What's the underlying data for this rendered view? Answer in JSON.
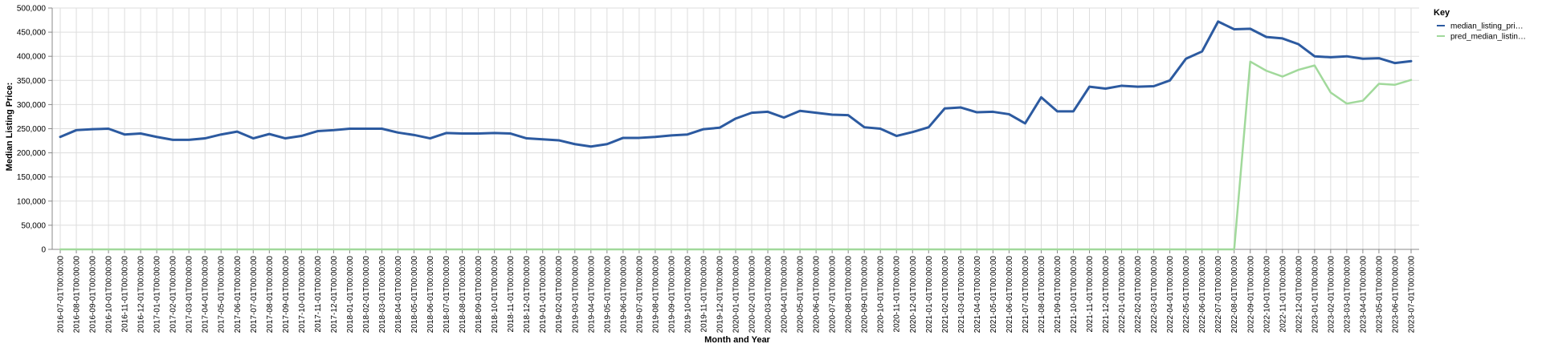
{
  "chart_data": {
    "type": "line",
    "title": "",
    "xlabel": "Month and Year",
    "ylabel": "Median Listing Price:",
    "ylim": [
      0,
      500000
    ],
    "y_ticks": [
      0,
      50000,
      100000,
      150000,
      200000,
      250000,
      300000,
      350000,
      400000,
      450000,
      500000
    ],
    "y_tick_labels": [
      "0",
      "50,000",
      "100,000",
      "150,000",
      "200,000",
      "250,000",
      "300,000",
      "350,000",
      "400,000",
      "450,000",
      "500,000"
    ],
    "grid": true,
    "legend": {
      "title": "Key",
      "position": "right"
    },
    "x": [
      "2016-07-01T00:00:00",
      "2016-08-01T00:00:00",
      "2016-09-01T00:00:00",
      "2016-10-01T00:00:00",
      "2016-11-01T00:00:00",
      "2016-12-01T00:00:00",
      "2017-01-01T00:00:00",
      "2017-02-01T00:00:00",
      "2017-03-01T00:00:00",
      "2017-04-01T00:00:00",
      "2017-05-01T00:00:00",
      "2017-06-01T00:00:00",
      "2017-07-01T00:00:00",
      "2017-08-01T00:00:00",
      "2017-09-01T00:00:00",
      "2017-10-01T00:00:00",
      "2017-11-01T00:00:00",
      "2017-12-01T00:00:00",
      "2018-01-01T00:00:00",
      "2018-02-01T00:00:00",
      "2018-03-01T00:00:00",
      "2018-04-01T00:00:00",
      "2018-05-01T00:00:00",
      "2018-06-01T00:00:00",
      "2018-07-01T00:00:00",
      "2018-08-01T00:00:00",
      "2018-09-01T00:00:00",
      "2018-10-01T00:00:00",
      "2018-11-01T00:00:00",
      "2018-12-01T00:00:00",
      "2019-01-01T00:00:00",
      "2019-02-01T00:00:00",
      "2019-03-01T00:00:00",
      "2019-04-01T00:00:00",
      "2019-05-01T00:00:00",
      "2019-06-01T00:00:00",
      "2019-07-01T00:00:00",
      "2019-08-01T00:00:00",
      "2019-09-01T00:00:00",
      "2019-10-01T00:00:00",
      "2019-11-01T00:00:00",
      "2019-12-01T00:00:00",
      "2020-01-01T00:00:00",
      "2020-02-01T00:00:00",
      "2020-03-01T00:00:00",
      "2020-04-01T00:00:00",
      "2020-05-01T00:00:00",
      "2020-06-01T00:00:00",
      "2020-07-01T00:00:00",
      "2020-08-01T00:00:00",
      "2020-09-01T00:00:00",
      "2020-10-01T00:00:00",
      "2020-11-01T00:00:00",
      "2020-12-01T00:00:00",
      "2021-01-01T00:00:00",
      "2021-02-01T00:00:00",
      "2021-03-01T00:00:00",
      "2021-04-01T00:00:00",
      "2021-05-01T00:00:00",
      "2021-06-01T00:00:00",
      "2021-07-01T00:00:00",
      "2021-08-01T00:00:00",
      "2021-09-01T00:00:00",
      "2021-10-01T00:00:00",
      "2021-11-01T00:00:00",
      "2021-12-01T00:00:00",
      "2022-01-01T00:00:00",
      "2022-02-01T00:00:00",
      "2022-03-01T00:00:00",
      "2022-04-01T00:00:00",
      "2022-05-01T00:00:00",
      "2022-06-01T00:00:00",
      "2022-07-01T00:00:00",
      "2022-08-01T00:00:00",
      "2022-09-01T00:00:00",
      "2022-10-01T00:00:00",
      "2022-11-01T00:00:00",
      "2022-12-01T00:00:00",
      "2023-01-01T00:00:00",
      "2023-02-01T00:00:00",
      "2023-03-01T00:00:00",
      "2023-04-01T00:00:00",
      "2023-05-01T00:00:00",
      "2023-06-01T00:00:00",
      "2023-07-01T00:00:00"
    ],
    "series": [
      {
        "name": "median_listing_pri…",
        "color": "#2c5aa0",
        "values": [
          233000,
          247000,
          249000,
          250000,
          238000,
          240000,
          233000,
          227000,
          227000,
          230000,
          238000,
          244000,
          230000,
          239000,
          230000,
          235000,
          245000,
          247000,
          250000,
          250000,
          250000,
          242000,
          237000,
          230000,
          241000,
          240000,
          240000,
          241000,
          240000,
          230000,
          228000,
          226000,
          218000,
          213000,
          218000,
          231000,
          231000,
          233000,
          236000,
          238000,
          249000,
          252000,
          271000,
          283000,
          285000,
          273000,
          287000,
          283000,
          279000,
          278000,
          253000,
          250000,
          235000,
          243000,
          253000,
          292000,
          294000,
          284000,
          285000,
          280000,
          261000,
          315000,
          286000,
          286000,
          337000,
          333000,
          339000,
          337000,
          338000,
          350000,
          395000,
          410000,
          472000,
          456000,
          457000,
          440000,
          437000,
          425000,
          400000,
          398000,
          400000,
          395000,
          396000,
          386000,
          390000
        ]
      },
      {
        "name": "pred_median_listin…",
        "color": "#a1d99b",
        "values": [
          0,
          0,
          0,
          0,
          0,
          0,
          0,
          0,
          0,
          0,
          0,
          0,
          0,
          0,
          0,
          0,
          0,
          0,
          0,
          0,
          0,
          0,
          0,
          0,
          0,
          0,
          0,
          0,
          0,
          0,
          0,
          0,
          0,
          0,
          0,
          0,
          0,
          0,
          0,
          0,
          0,
          0,
          0,
          0,
          0,
          0,
          0,
          0,
          0,
          0,
          0,
          0,
          0,
          0,
          0,
          0,
          0,
          0,
          0,
          0,
          0,
          0,
          0,
          0,
          0,
          0,
          0,
          0,
          0,
          0,
          0,
          0,
          0,
          0,
          389000,
          370000,
          358000,
          372000,
          381000,
          325000,
          302000,
          308000,
          343000,
          341000,
          351000
        ]
      }
    ]
  }
}
